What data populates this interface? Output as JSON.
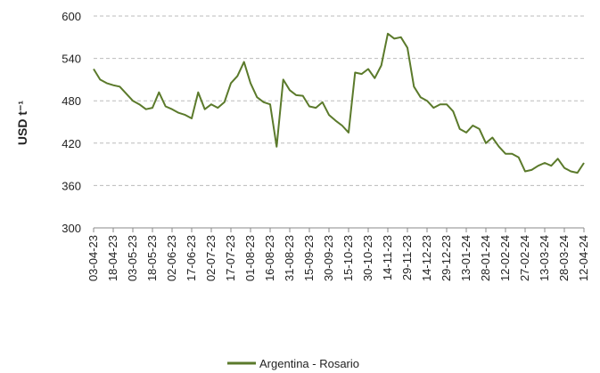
{
  "chart_data": {
    "type": "line",
    "ylabel": "USD t⁻¹",
    "categories": [
      "03-04-23",
      null,
      null,
      "18-04-23",
      null,
      null,
      "03-05-23",
      null,
      null,
      "18-05-23",
      null,
      null,
      "02-06-23",
      null,
      null,
      "17-06-23",
      null,
      null,
      "02-07-23",
      null,
      null,
      "17-07-23",
      null,
      null,
      "01-08-23",
      null,
      null,
      "16-08-23",
      null,
      null,
      "31-08-23",
      null,
      null,
      "15-09-23",
      null,
      null,
      "30-09-23",
      null,
      null,
      "15-10-23",
      null,
      null,
      "30-10-23",
      null,
      null,
      "14-11-23",
      null,
      null,
      "29-11-23",
      null,
      null,
      "14-12-23",
      null,
      null,
      "29-12-23",
      null,
      null,
      "13-01-24",
      null,
      null,
      "28-01-24",
      null,
      null,
      "12-02-24",
      null,
      null,
      "27-02-24",
      null,
      null,
      "13-03-24",
      null,
      null,
      "28-03-24",
      null,
      null,
      "12-04-24"
    ],
    "series": [
      {
        "name": "Argentina - Rosario",
        "color": "#5b7a2b",
        "values": [
          525,
          510,
          505,
          502,
          500,
          490,
          480,
          475,
          468,
          470,
          492,
          472,
          468,
          463,
          460,
          455,
          492,
          468,
          475,
          470,
          478,
          505,
          515,
          535,
          505,
          485,
          478,
          475,
          415,
          510,
          495,
          488,
          487,
          472,
          470,
          478,
          460,
          452,
          445,
          435,
          520,
          518,
          525,
          512,
          530,
          575,
          568,
          570,
          555,
          500,
          485,
          480,
          470,
          475,
          475,
          465,
          440,
          435,
          445,
          440,
          420,
          428,
          415,
          405,
          405,
          400,
          380,
          382,
          388,
          392,
          388,
          398,
          385,
          380,
          378,
          392
        ]
      }
    ],
    "ylim": [
      300,
      600
    ],
    "yticks": [
      300,
      360,
      420,
      480,
      540,
      600
    ],
    "grid": true,
    "legend": "bottom"
  }
}
